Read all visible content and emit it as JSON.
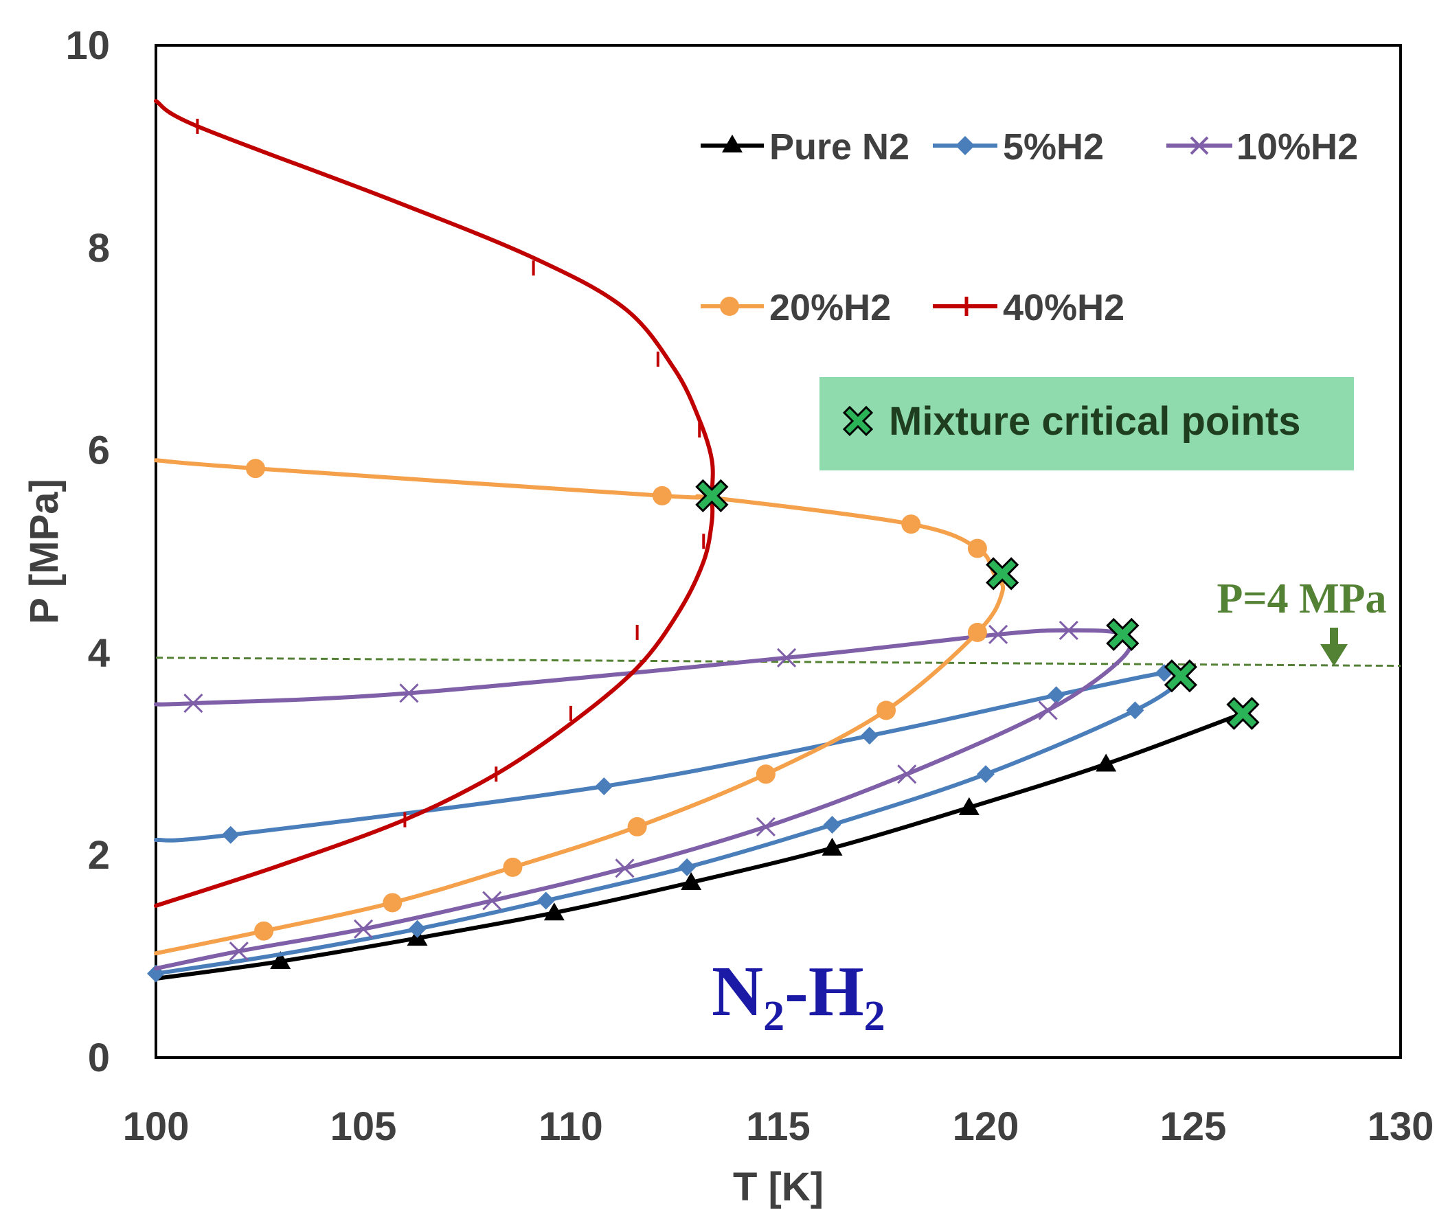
{
  "chart_data": {
    "type": "line",
    "title": "",
    "xlabel": "T [K]",
    "ylabel": "P [MPa]",
    "xlim": [
      100,
      130
    ],
    "ylim": [
      0,
      10
    ],
    "x_ticks": [
      "100",
      "105",
      "110",
      "115",
      "120",
      "125",
      "130"
    ],
    "y_ticks": [
      "0",
      "2",
      "4",
      "6",
      "8",
      "10"
    ],
    "series": [
      {
        "name": "Pure N2",
        "color": "#000000",
        "marker": "triangle",
        "curve": [
          [
            100,
            0.78
          ],
          [
            103,
            0.95
          ],
          [
            106.3,
            1.18
          ],
          [
            109.6,
            1.43
          ],
          [
            112.9,
            1.73
          ],
          [
            116.3,
            2.07
          ],
          [
            119.6,
            2.47
          ],
          [
            122.9,
            2.9
          ],
          [
            126.2,
            3.4
          ]
        ],
        "markers": [
          [
            103,
            0.95
          ],
          [
            106.3,
            1.18
          ],
          [
            109.6,
            1.43
          ],
          [
            112.9,
            1.73
          ],
          [
            116.3,
            2.07
          ],
          [
            119.6,
            2.47
          ],
          [
            122.9,
            2.9
          ]
        ]
      },
      {
        "name": "5%H2",
        "color": "#4a7ebb",
        "marker": "diamond",
        "curve": [
          [
            100,
            0.83
          ],
          [
            103,
            1.02
          ],
          [
            106.3,
            1.27
          ],
          [
            109.4,
            1.55
          ],
          [
            112.8,
            1.88
          ],
          [
            116.3,
            2.3
          ],
          [
            120,
            2.8
          ],
          [
            123.6,
            3.43
          ],
          [
            124.8,
            3.77
          ],
          [
            124.3,
            3.8
          ],
          [
            121.7,
            3.58
          ],
          [
            117.2,
            3.18
          ],
          [
            110.8,
            2.68
          ],
          [
            101.8,
            2.2
          ],
          [
            100,
            2.15
          ]
        ],
        "markers": [
          [
            100,
            0.83
          ],
          [
            106.3,
            1.27
          ],
          [
            109.4,
            1.55
          ],
          [
            112.8,
            1.88
          ],
          [
            116.3,
            2.3
          ],
          [
            120,
            2.8
          ],
          [
            123.6,
            3.43
          ],
          [
            124.3,
            3.8
          ],
          [
            121.7,
            3.58
          ],
          [
            117.2,
            3.18
          ],
          [
            110.8,
            2.68
          ],
          [
            101.8,
            2.2
          ]
        ]
      },
      {
        "name": "10%H2",
        "color": "#7f5fa8",
        "marker": "cross",
        "curve": [
          [
            100,
            0.88
          ],
          [
            102,
            1.05
          ],
          [
            105,
            1.27
          ],
          [
            108.1,
            1.55
          ],
          [
            111.3,
            1.87
          ],
          [
            114.7,
            2.28
          ],
          [
            118.1,
            2.8
          ],
          [
            121.5,
            3.43
          ],
          [
            123.3,
            3.95
          ],
          [
            123.3,
            4.18
          ],
          [
            122,
            4.22
          ],
          [
            120.3,
            4.18
          ],
          [
            115.2,
            3.95
          ],
          [
            106.1,
            3.6
          ],
          [
            100.9,
            3.5
          ],
          [
            100,
            3.49
          ]
        ],
        "markers": [
          [
            102,
            1.05
          ],
          [
            105,
            1.27
          ],
          [
            108.1,
            1.55
          ],
          [
            111.3,
            1.87
          ],
          [
            114.7,
            2.28
          ],
          [
            118.1,
            2.8
          ],
          [
            121.5,
            3.43
          ],
          [
            122,
            4.22
          ],
          [
            120.3,
            4.18
          ],
          [
            115.2,
            3.95
          ],
          [
            106.1,
            3.6
          ],
          [
            100.9,
            3.5
          ]
        ]
      },
      {
        "name": "20%H2",
        "color": "#f5a04a",
        "marker": "circle",
        "curve": [
          [
            100,
            1.03
          ],
          [
            102.6,
            1.25
          ],
          [
            105.7,
            1.53
          ],
          [
            108.6,
            1.88
          ],
          [
            111.6,
            2.28
          ],
          [
            114.7,
            2.8
          ],
          [
            117.6,
            3.43
          ],
          [
            119.8,
            4.2
          ],
          [
            120.4,
            4.6
          ],
          [
            120.2,
            4.78
          ],
          [
            119.8,
            5.03
          ],
          [
            118.2,
            5.27
          ],
          [
            113.4,
            5.53
          ],
          [
            112.2,
            5.55
          ],
          [
            102.4,
            5.82
          ],
          [
            100,
            5.9
          ]
        ],
        "markers": [
          [
            102.6,
            1.25
          ],
          [
            105.7,
            1.53
          ],
          [
            108.6,
            1.88
          ],
          [
            111.6,
            2.28
          ],
          [
            114.7,
            2.8
          ],
          [
            117.6,
            3.43
          ],
          [
            119.8,
            4.2
          ],
          [
            119.8,
            5.03
          ],
          [
            118.2,
            5.27
          ],
          [
            112.2,
            5.55
          ],
          [
            102.4,
            5.82
          ]
        ]
      },
      {
        "name": "40%H2",
        "color": "#c00000",
        "marker": "dash",
        "curve": [
          [
            100,
            1.5
          ],
          [
            103,
            1.9
          ],
          [
            106,
            2.35
          ],
          [
            108.2,
            2.8
          ],
          [
            110,
            3.3
          ],
          [
            111.6,
            3.85
          ],
          [
            112.6,
            4.4
          ],
          [
            113.2,
            4.9
          ],
          [
            113.4,
            5.3
          ],
          [
            113.4,
            5.55
          ],
          [
            113.4,
            5.9
          ],
          [
            113.1,
            6.3
          ],
          [
            112.5,
            6.8
          ],
          [
            111.3,
            7.4
          ],
          [
            109.1,
            7.9
          ],
          [
            105.5,
            8.5
          ],
          [
            101,
            9.2
          ],
          [
            100,
            9.45
          ]
        ],
        "markers": [
          [
            106,
            2.35
          ],
          [
            108.2,
            2.8
          ],
          [
            110,
            3.4
          ],
          [
            111.6,
            4.2
          ],
          [
            113.2,
            5.1
          ],
          [
            113.1,
            6.2
          ],
          [
            112.1,
            6.9
          ],
          [
            109.1,
            7.8
          ],
          [
            101,
            9.2
          ]
        ]
      }
    ],
    "critical_points": [
      [
        113.4,
        5.55
      ],
      [
        120.4,
        4.78
      ],
      [
        123.3,
        4.18
      ],
      [
        124.7,
        3.77
      ],
      [
        126.2,
        3.4
      ]
    ],
    "reference_line": {
      "label": "P=4 MPa",
      "y_start": 3.95,
      "y_end": 3.87
    },
    "annotations": {
      "critical_points_label": "Mixture critical points",
      "critical_icon": "green-cross-marker",
      "system_label": "N2-H2",
      "system_label_parts": [
        "N",
        "2",
        "-H",
        "2"
      ]
    },
    "legend_position": "top-right",
    "colors": {
      "critical_marker": "#2bb358",
      "critical_box": "#8fdbad",
      "ref_line": "#548235",
      "system_label": "#1a1aa6"
    }
  }
}
